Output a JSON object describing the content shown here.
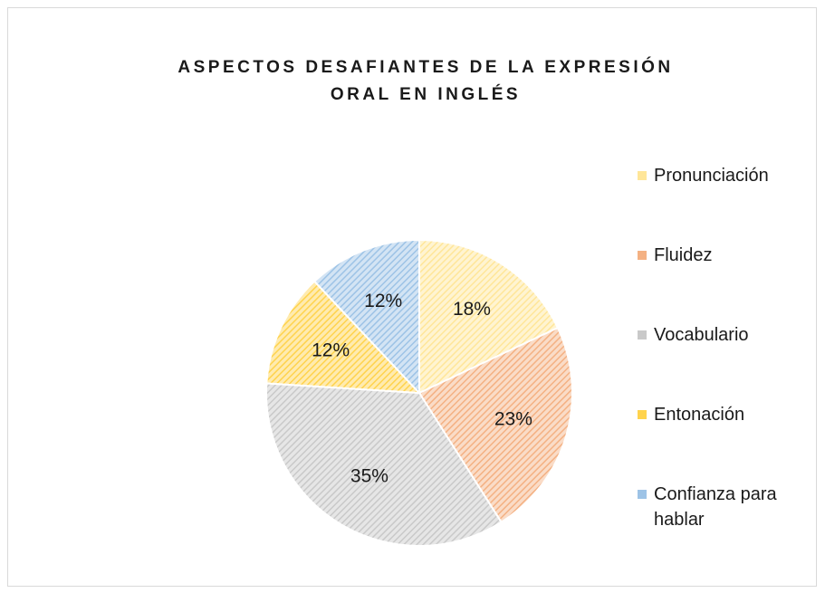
{
  "chart_data": {
    "type": "pie",
    "title": "ASPECTOS DESAFIANTES DE LA EXPRESIÓN ORAL EN INGLÉS",
    "categories": [
      "Pronunciación",
      "Fluidez",
      "Vocabulario",
      "Entonación",
      "Confianza para hablar"
    ],
    "values": [
      18,
      23,
      35,
      12,
      12
    ],
    "value_labels": [
      "18%",
      "23%",
      "35%",
      "12%",
      "12%"
    ],
    "colors": [
      "#ffe699",
      "#f4b183",
      "#c9c9c9",
      "#ffd34d",
      "#9dc3e6"
    ],
    "legend": "right"
  }
}
